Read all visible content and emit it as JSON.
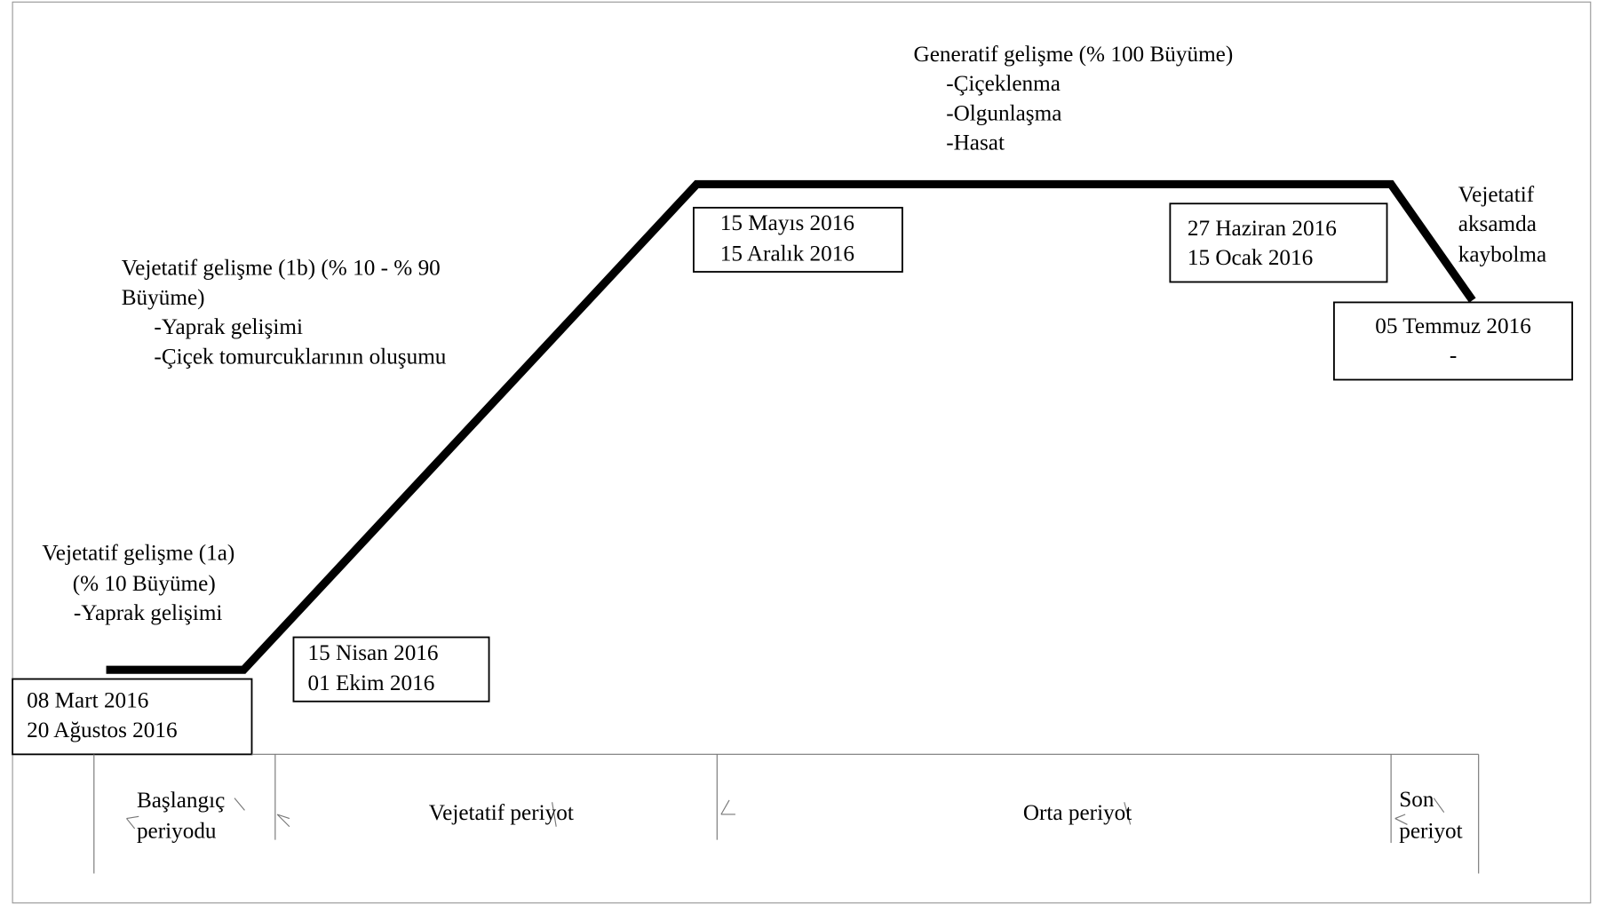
{
  "stages": [
    {
      "lines": [
        "Vejetatif gelişme (1a)",
        "(% 10 Büyüme)",
        "-Yaprak gelişimi"
      ]
    },
    {
      "lines": [
        "Vejetatif gelişme (1b) (% 10 - % 90",
        "Büyüme)",
        "-Yaprak gelişimi",
        "-Çiçek tomurcuklarının oluşumu"
      ]
    },
    {
      "lines": [
        "Generatif gelişme (% 100 Büyüme)",
        "-Çiçeklenma",
        "-Olgunlaşma",
        "-Hasat"
      ]
    },
    {
      "lines": [
        "Vejetatif",
        "aksamda",
        "kaybolma"
      ]
    }
  ],
  "date_boxes": [
    {
      "lines": [
        "08 Mart 2016",
        "20 Ağustos 2016"
      ]
    },
    {
      "lines": [
        "15 Nisan 2016",
        "01 Ekim 2016"
      ]
    },
    {
      "lines": [
        "15 Mayıs 2016",
        "15 Aralık 2016"
      ]
    },
    {
      "lines": [
        "27 Haziran 2016",
        "15 Ocak 2016"
      ]
    },
    {
      "lines": [
        "05 Temmuz 2016",
        "-"
      ]
    }
  ],
  "periods": [
    {
      "lines": [
        "Başlangıç",
        "periyodu"
      ]
    },
    {
      "lines": [
        "Vejetatif periyot"
      ]
    },
    {
      "lines": [
        "Orta periyot"
      ]
    },
    {
      "lines": [
        "Son",
        "periyot"
      ]
    }
  ]
}
